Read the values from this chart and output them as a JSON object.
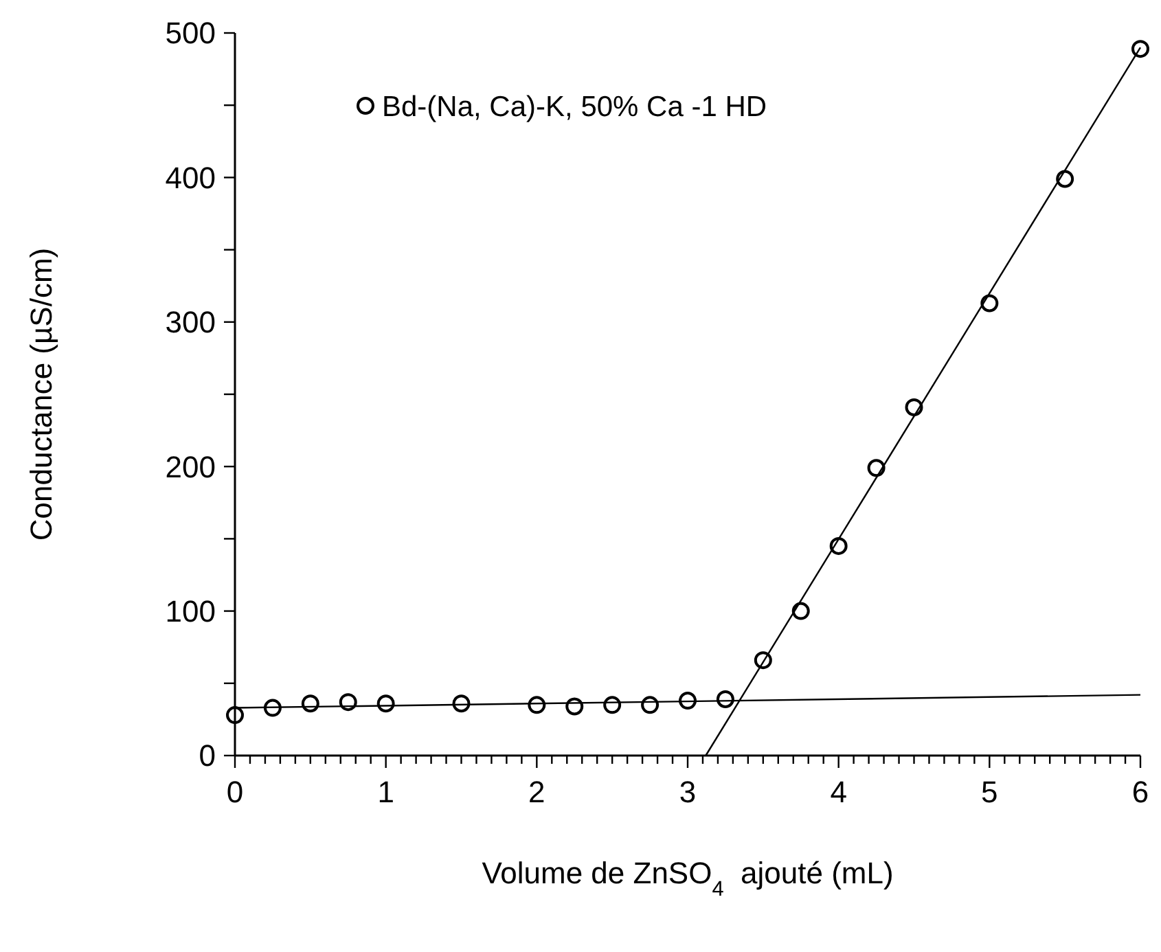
{
  "chart_data": {
    "type": "scatter",
    "xlabel": "Volume de ZnSO$_{4}$  ajouté (mL)",
    "ylabel": "Conductance (µS/cm)",
    "xlim": [
      0,
      6
    ],
    "ylim": [
      0,
      500
    ],
    "xticks": [
      0,
      {
        "value": 0.1,
        "label": null
      },
      {
        "value": 0.2,
        "label": null
      },
      {
        "value": 0.3,
        "label": null
      },
      {
        "value": 0.4,
        "label": null
      },
      {
        "value": 0.5,
        "label": null
      },
      {
        "value": 0.6,
        "label": null
      },
      {
        "value": 0.7,
        "label": null
      },
      {
        "value": 0.8,
        "label": null
      },
      {
        "value": 0.9,
        "label": null
      },
      1,
      {
        "value": 1.1,
        "label": null
      },
      {
        "value": 1.2,
        "label": null
      },
      {
        "value": 1.3,
        "label": null
      },
      {
        "value": 1.4,
        "label": null
      },
      {
        "value": 1.5,
        "label": null
      },
      {
        "value": 1.6,
        "label": null
      },
      {
        "value": 1.7,
        "label": null
      },
      {
        "value": 1.8,
        "label": null
      },
      {
        "value": 1.9,
        "label": null
      },
      2,
      {
        "value": 2.1,
        "label": null
      },
      {
        "value": 2.2,
        "label": null
      },
      {
        "value": 2.3,
        "label": null
      },
      {
        "value": 2.4,
        "label": null
      },
      {
        "value": 2.5,
        "label": null
      },
      {
        "value": 2.6,
        "label": null
      },
      {
        "value": 2.7,
        "label": null
      },
      {
        "value": 2.8,
        "label": null
      },
      {
        "value": 2.9,
        "label": null
      },
      3,
      {
        "value": 3.1,
        "label": null
      },
      {
        "value": 3.2,
        "label": null
      },
      {
        "value": 3.3,
        "label": null
      },
      {
        "value": 3.4,
        "label": null
      },
      {
        "value": 3.5,
        "label": null
      },
      {
        "value": 3.6,
        "label": null
      },
      {
        "value": 3.7,
        "label": null
      },
      {
        "value": 3.8,
        "label": null
      },
      {
        "value": 3.9,
        "label": null
      },
      4,
      {
        "value": 4.1,
        "label": null
      },
      {
        "value": 4.2,
        "label": null
      },
      {
        "value": 4.3,
        "label": null
      },
      {
        "value": 4.4,
        "label": null
      },
      {
        "value": 4.5,
        "label": null
      },
      {
        "value": 4.6,
        "label": null
      },
      {
        "value": 4.7,
        "label": null
      },
      {
        "value": 4.8,
        "label": null
      },
      {
        "value": 4.9,
        "label": null
      },
      5,
      {
        "value": 5.1,
        "label": null
      },
      {
        "value": 5.2,
        "label": null
      },
      {
        "value": 5.3,
        "label": null
      },
      {
        "value": 5.4,
        "label": null
      },
      {
        "value": 5.5,
        "label": null
      },
      {
        "value": 5.6,
        "label": null
      },
      {
        "value": 5.7,
        "label": null
      },
      {
        "value": 5.8,
        "label": null
      },
      {
        "value": 5.9,
        "label": null
      },
      6
    ],
    "yticks": [
      0,
      {
        "value": 50,
        "label": null
      },
      100,
      {
        "value": 150,
        "label": null
      },
      200,
      {
        "value": 250,
        "label": null
      },
      300,
      {
        "value": 350,
        "label": null
      },
      400,
      {
        "value": 450,
        "label": null
      },
      500
    ],
    "grid": false,
    "legend": "top left",
    "series": [
      {
        "name": "Bd-(Na, Ca)-K, 50% Ca -1 HD",
        "marker": "circle",
        "color": "#000000",
        "x": [
          0,
          0.25,
          0.5,
          0.75,
          1,
          1.5,
          2,
          2.25,
          2.5,
          2.75,
          3,
          3.25,
          3.5,
          3.75,
          4,
          4.25,
          4.5,
          5,
          5.5,
          6
        ],
        "values": [
          28,
          33,
          36,
          37,
          36,
          36,
          35,
          34,
          35,
          35,
          38,
          39,
          66,
          100,
          145,
          199,
          241,
          313,
          399,
          489
        ]
      },
      {
        "type": "line",
        "marker": "none",
        "color": "#000000",
        "x": [
          0,
          6
        ],
        "values": [
          33,
          42
        ]
      },
      {
        "type": "line",
        "marker": "none",
        "color": "#000000",
        "x": [
          3.12,
          6
        ],
        "values": [
          0,
          490
        ]
      }
    ]
  }
}
